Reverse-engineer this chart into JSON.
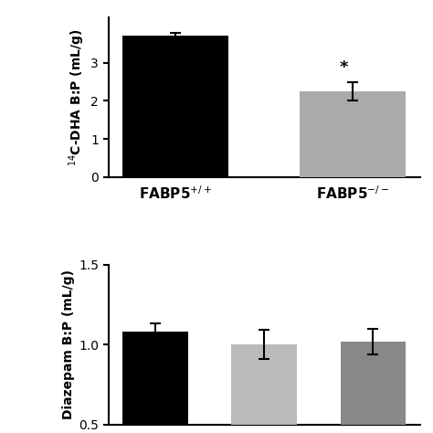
{
  "top": {
    "categories": [
      "FABP5$^{+/+}$",
      "FABP5$^{-/-}$"
    ],
    "values": [
      3.72,
      2.25
    ],
    "errors": [
      0.08,
      0.25
    ],
    "colors": [
      "#000000",
      "#aaaaaa"
    ],
    "ylabel": "$^{14}$C-DHA B:P (mL/g)",
    "ylim": [
      0,
      4.2
    ],
    "yticks": [
      0,
      1,
      2,
      3
    ],
    "star_label": "*",
    "star_index": 1
  },
  "bottom": {
    "values": [
      1.08,
      1.0,
      1.02
    ],
    "errors": [
      0.05,
      0.09,
      0.08
    ],
    "colors": [
      "#000000",
      "#bbbbbb",
      "#888888"
    ],
    "ylabel": "Diazepam B:P (mL/g)",
    "ylim": [
      0.5,
      1.5
    ],
    "yticks": [
      0.5,
      1.0,
      1.5
    ]
  },
  "bg_color": "#ffffff",
  "bar_width": 0.6,
  "capsize": 4,
  "elinewidth": 1.5,
  "ecapthick": 1.5
}
